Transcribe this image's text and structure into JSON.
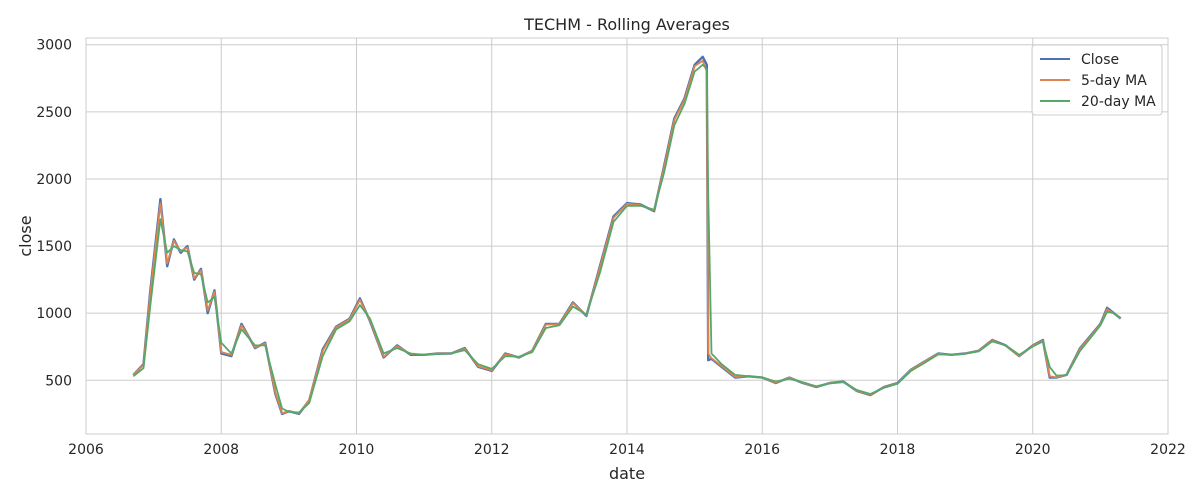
{
  "chart_data": {
    "type": "line",
    "title": "TECHM - Rolling Averages",
    "xlabel": "date",
    "ylabel": "close",
    "xlim": [
      2006.0,
      2022.0
    ],
    "ylim": [
      100,
      3050
    ],
    "x_ticks": [
      2006,
      2008,
      2010,
      2012,
      2014,
      2016,
      2018,
      2020,
      2022
    ],
    "y_ticks": [
      500,
      1000,
      1500,
      2000,
      2500,
      3000
    ],
    "grid": true,
    "legend_position": "top-right",
    "x": [
      2006.7,
      2006.85,
      2006.95,
      2007.1,
      2007.2,
      2007.3,
      2007.4,
      2007.5,
      2007.6,
      2007.7,
      2007.8,
      2007.9,
      2008.0,
      2008.15,
      2008.3,
      2008.5,
      2008.65,
      2008.8,
      2008.9,
      2009.0,
      2009.15,
      2009.3,
      2009.5,
      2009.7,
      2009.9,
      2010.05,
      2010.2,
      2010.4,
      2010.6,
      2010.8,
      2011.0,
      2011.2,
      2011.4,
      2011.6,
      2011.8,
      2012.0,
      2012.2,
      2012.4,
      2012.6,
      2012.8,
      2013.0,
      2013.2,
      2013.4,
      2013.6,
      2013.8,
      2014.0,
      2014.2,
      2014.4,
      2014.55,
      2014.7,
      2014.85,
      2015.0,
      2015.12,
      2015.18,
      2015.2,
      2015.25,
      2015.4,
      2015.6,
      2015.8,
      2016.0,
      2016.2,
      2016.4,
      2016.6,
      2016.8,
      2017.0,
      2017.2,
      2017.4,
      2017.6,
      2017.8,
      2018.0,
      2018.2,
      2018.4,
      2018.6,
      2018.8,
      2019.0,
      2019.2,
      2019.4,
      2019.6,
      2019.8,
      2020.0,
      2020.15,
      2020.25,
      2020.35,
      2020.5,
      2020.7,
      2020.9,
      2021.0,
      2021.1,
      2021.2,
      2021.3
    ],
    "series": [
      {
        "name": "Close",
        "color": "#4c72b0",
        "width": 2.4,
        "values": [
          540,
          620,
          1160,
          1850,
          1350,
          1550,
          1450,
          1500,
          1250,
          1330,
          1000,
          1170,
          700,
          680,
          920,
          740,
          780,
          400,
          250,
          270,
          250,
          350,
          730,
          900,
          960,
          1110,
          940,
          670,
          760,
          690,
          690,
          700,
          700,
          740,
          600,
          570,
          700,
          670,
          720,
          920,
          920,
          1080,
          980,
          1350,
          1720,
          1820,
          1810,
          1760,
          2100,
          2450,
          2600,
          2850,
          2910,
          2850,
          650,
          660,
          600,
          520,
          530,
          520,
          480,
          520,
          480,
          450,
          480,
          490,
          420,
          390,
          450,
          480,
          580,
          640,
          700,
          690,
          700,
          720,
          800,
          760,
          680,
          760,
          800,
          520,
          520,
          540,
          740,
          860,
          920,
          1040,
          1000,
          960
        ]
      },
      {
        "name": "5-day MA",
        "color": "#dd8452",
        "width": 1.8,
        "values": [
          540,
          615,
          1140,
          1820,
          1370,
          1540,
          1460,
          1490,
          1260,
          1320,
          1020,
          1160,
          710,
          690,
          910,
          745,
          775,
          410,
          255,
          270,
          255,
          355,
          720,
          895,
          955,
          1100,
          945,
          675,
          755,
          695,
          690,
          700,
          700,
          735,
          605,
          575,
          695,
          672,
          718,
          915,
          918,
          1075,
          985,
          1340,
          1710,
          1815,
          1805,
          1765,
          2090,
          2440,
          2590,
          2840,
          2880,
          2800,
          700,
          665,
          605,
          525,
          530,
          520,
          482,
          518,
          482,
          452,
          480,
          488,
          422,
          392,
          448,
          478,
          578,
          638,
          698,
          690,
          700,
          718,
          798,
          758,
          682,
          758,
          795,
          530,
          522,
          540,
          735,
          855,
          918,
          1030,
          998,
          962
        ]
      },
      {
        "name": "20-day MA",
        "color": "#55a868",
        "width": 1.8,
        "values": [
          530,
          590,
          1050,
          1700,
          1450,
          1500,
          1470,
          1460,
          1300,
          1290,
          1080,
          1120,
          780,
          700,
          880,
          760,
          760,
          470,
          290,
          265,
          260,
          330,
          680,
          880,
          940,
          1060,
          960,
          700,
          740,
          700,
          690,
          695,
          700,
          725,
          620,
          585,
          680,
          675,
          710,
          890,
          910,
          1050,
          990,
          1300,
          1680,
          1800,
          1800,
          1770,
          2050,
          2400,
          2560,
          2800,
          2850,
          2820,
          1900,
          700,
          620,
          540,
          530,
          522,
          490,
          512,
          486,
          455,
          478,
          486,
          428,
          398,
          444,
          474,
          570,
          630,
          692,
          692,
          698,
          715,
          790,
          760,
          690,
          752,
          790,
          600,
          535,
          538,
          720,
          845,
          910,
          1010,
          1000,
          965
        ]
      }
    ]
  }
}
